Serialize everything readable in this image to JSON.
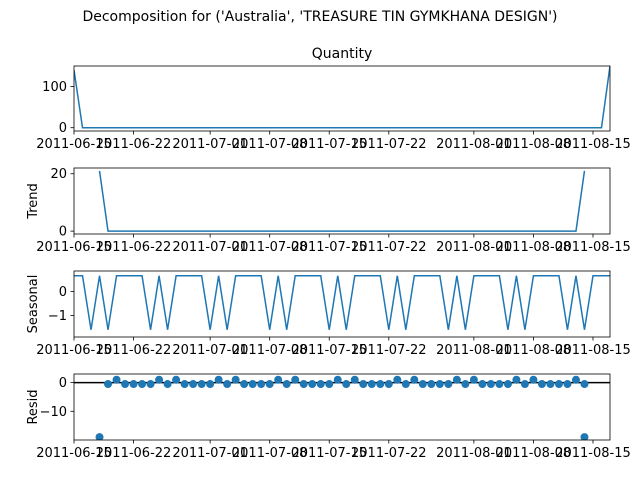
{
  "colors": {
    "series": "#1f77b4",
    "axis": "#000000",
    "background": "#ffffff"
  },
  "chart_data": {
    "suptitle": "Decomposition for ('Australia', 'TREASURE TIN GYMKHANA DESIGN')",
    "x_tick_labels": [
      "2011-06-15",
      "2011-06-22",
      "2011-07-01",
      "2011-07-08",
      "2011-07-15",
      "2011-07-22",
      "2011-08-01",
      "2011-08-08",
      "2011-08-15"
    ],
    "panels": [
      {
        "type": "line",
        "title": "Quantity",
        "ylabel": "",
        "yticks": [
          0,
          100
        ],
        "ylim": [
          -8,
          150
        ],
        "x": [
          0,
          1,
          62,
          63
        ],
        "values": [
          140,
          0,
          0,
          150
        ]
      },
      {
        "type": "line",
        "title": "",
        "ylabel": "Trend",
        "yticks": [
          0,
          20
        ],
        "ylim": [
          -1,
          22
        ],
        "x": [
          3,
          4,
          59,
          60
        ],
        "values": [
          21,
          0,
          0,
          21
        ]
      },
      {
        "type": "line",
        "title": "",
        "ylabel": "Seasonal",
        "yticks": [
          0,
          -1
        ],
        "ylim": [
          -1.9,
          0.85
        ],
        "period": 7,
        "pattern": [
          0.65,
          0.65,
          -1.6,
          0.65,
          -1.6,
          0.65,
          0.65
        ],
        "x_start": 0,
        "x_end": 63
      },
      {
        "type": "scatter",
        "title": "",
        "ylabel": "Resid",
        "yticks": [
          0,
          -10
        ],
        "ylim": [
          -20,
          3
        ],
        "baseline": 0,
        "points": [
          [
            3,
            -19
          ],
          [
            4,
            -0.5
          ],
          [
            5,
            1
          ],
          [
            6,
            -0.5
          ],
          [
            7,
            -0.5
          ],
          [
            8,
            -0.5
          ],
          [
            9,
            -0.5
          ],
          [
            10,
            1
          ],
          [
            11,
            -0.5
          ],
          [
            12,
            1
          ],
          [
            13,
            -0.5
          ],
          [
            14,
            -0.5
          ],
          [
            15,
            -0.5
          ],
          [
            16,
            -0.5
          ],
          [
            17,
            1
          ],
          [
            18,
            -0.5
          ],
          [
            19,
            1
          ],
          [
            20,
            -0.5
          ],
          [
            21,
            -0.5
          ],
          [
            22,
            -0.5
          ],
          [
            23,
            -0.5
          ],
          [
            24,
            1
          ],
          [
            25,
            -0.5
          ],
          [
            26,
            1
          ],
          [
            27,
            -0.5
          ],
          [
            28,
            -0.5
          ],
          [
            29,
            -0.5
          ],
          [
            30,
            -0.5
          ],
          [
            31,
            1
          ],
          [
            32,
            -0.5
          ],
          [
            33,
            1
          ],
          [
            34,
            -0.5
          ],
          [
            35,
            -0.5
          ],
          [
            36,
            -0.5
          ],
          [
            37,
            -0.5
          ],
          [
            38,
            1
          ],
          [
            39,
            -0.5
          ],
          [
            40,
            1
          ],
          [
            41,
            -0.5
          ],
          [
            42,
            -0.5
          ],
          [
            43,
            -0.5
          ],
          [
            44,
            -0.5
          ],
          [
            45,
            1
          ],
          [
            46,
            -0.5
          ],
          [
            47,
            1
          ],
          [
            48,
            -0.5
          ],
          [
            49,
            -0.5
          ],
          [
            50,
            -0.5
          ],
          [
            51,
            -0.5
          ],
          [
            52,
            1
          ],
          [
            53,
            -0.5
          ],
          [
            54,
            1
          ],
          [
            55,
            -0.5
          ],
          [
            56,
            -0.5
          ],
          [
            57,
            -0.5
          ],
          [
            58,
            -0.5
          ],
          [
            59,
            1
          ],
          [
            60,
            -0.5
          ],
          [
            60,
            -19
          ]
        ]
      }
    ]
  }
}
